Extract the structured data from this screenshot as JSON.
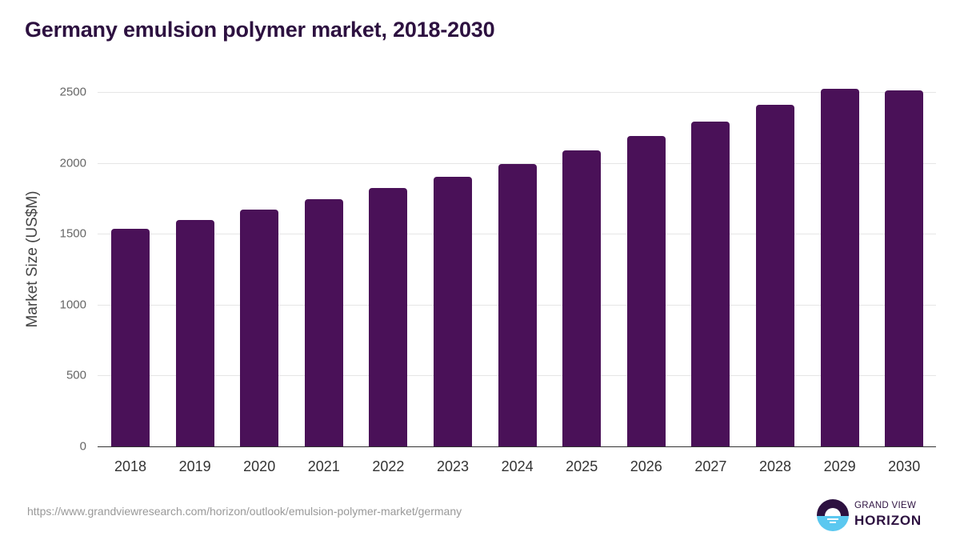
{
  "title": "Germany emulsion polymer market, 2018-2030",
  "source_url": "https://www.grandviewresearch.com/horizon/outlook/emulsion-polymer-market/germany",
  "logo": {
    "line1": "GRAND VIEW",
    "line2": "HORIZON"
  },
  "colors": {
    "bar": "#4a1158",
    "title": "#2d1140",
    "logo_dark": "#2d1140",
    "logo_light": "#5bc8f0"
  },
  "chart_data": {
    "type": "bar",
    "title": "Germany emulsion polymer market, 2018-2030",
    "xlabel": "",
    "ylabel": "Market Size (US$M)",
    "ylim": [
      0,
      2500
    ],
    "yticks": [
      0,
      500,
      1000,
      1500,
      2000,
      2500
    ],
    "grid": true,
    "legend": null,
    "categories": [
      "2018",
      "2019",
      "2020",
      "2021",
      "2022",
      "2023",
      "2024",
      "2025",
      "2026",
      "2027",
      "2028",
      "2029",
      "2030"
    ],
    "values": [
      1535,
      1597,
      1670,
      1744,
      1823,
      1902,
      1992,
      2088,
      2190,
      2291,
      2410,
      2523,
      2511
    ]
  }
}
